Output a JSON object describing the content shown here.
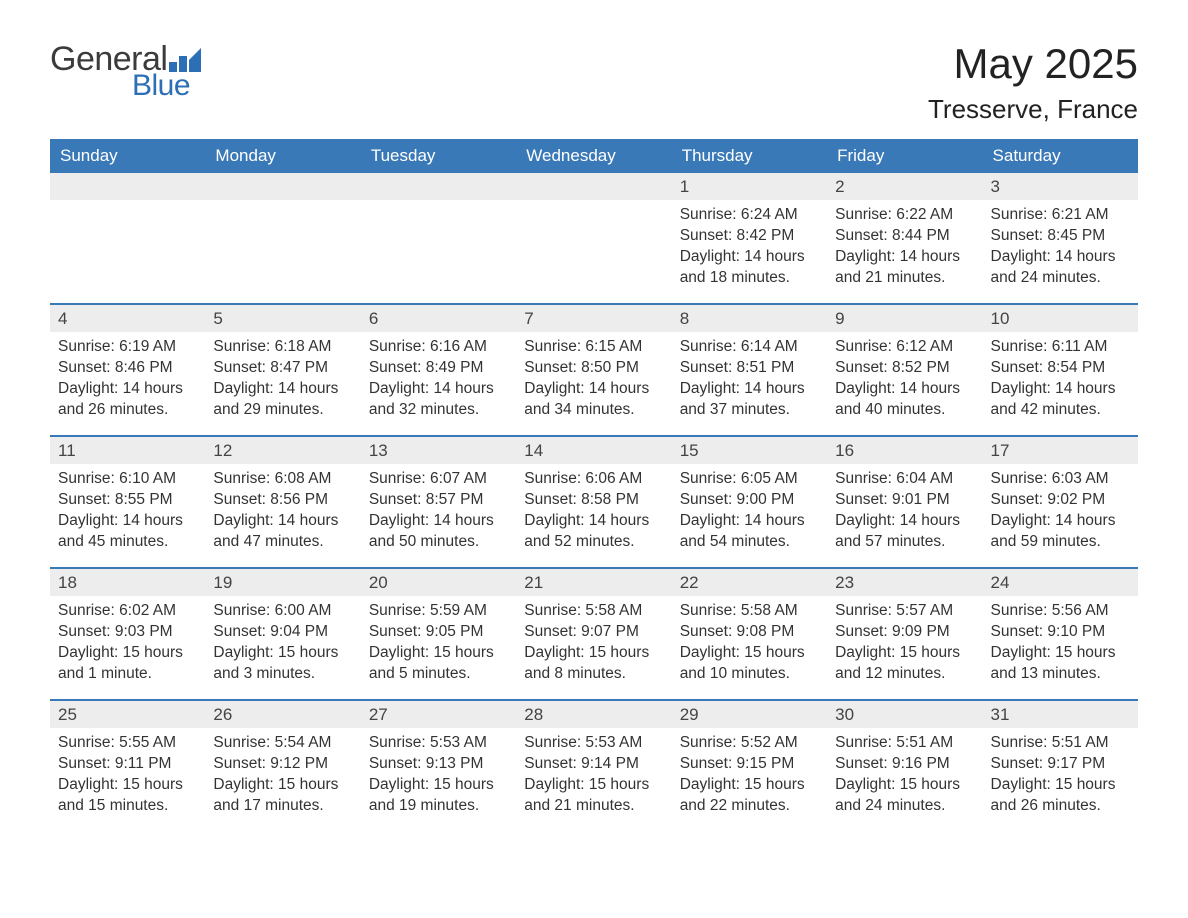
{
  "logo": {
    "text1": "General",
    "text2": "Blue",
    "icon_color": "#2c6fb5"
  },
  "title": "May 2025",
  "location": "Tresserve, France",
  "colors": {
    "header_bg": "#3a79b7",
    "header_text": "#ffffff",
    "daynum_bg": "#ededed",
    "week_border": "#3a79b7",
    "text": "#333333",
    "logo_gray": "#3b3b3b",
    "logo_blue": "#2c6fb5"
  },
  "day_names": [
    "Sunday",
    "Monday",
    "Tuesday",
    "Wednesday",
    "Thursday",
    "Friday",
    "Saturday"
  ],
  "weeks": [
    [
      null,
      null,
      null,
      null,
      {
        "n": "1",
        "sr": "6:24 AM",
        "ss": "8:42 PM",
        "dl": "14 hours and 18 minutes."
      },
      {
        "n": "2",
        "sr": "6:22 AM",
        "ss": "8:44 PM",
        "dl": "14 hours and 21 minutes."
      },
      {
        "n": "3",
        "sr": "6:21 AM",
        "ss": "8:45 PM",
        "dl": "14 hours and 24 minutes."
      }
    ],
    [
      {
        "n": "4",
        "sr": "6:19 AM",
        "ss": "8:46 PM",
        "dl": "14 hours and 26 minutes."
      },
      {
        "n": "5",
        "sr": "6:18 AM",
        "ss": "8:47 PM",
        "dl": "14 hours and 29 minutes."
      },
      {
        "n": "6",
        "sr": "6:16 AM",
        "ss": "8:49 PM",
        "dl": "14 hours and 32 minutes."
      },
      {
        "n": "7",
        "sr": "6:15 AM",
        "ss": "8:50 PM",
        "dl": "14 hours and 34 minutes."
      },
      {
        "n": "8",
        "sr": "6:14 AM",
        "ss": "8:51 PM",
        "dl": "14 hours and 37 minutes."
      },
      {
        "n": "9",
        "sr": "6:12 AM",
        "ss": "8:52 PM",
        "dl": "14 hours and 40 minutes."
      },
      {
        "n": "10",
        "sr": "6:11 AM",
        "ss": "8:54 PM",
        "dl": "14 hours and 42 minutes."
      }
    ],
    [
      {
        "n": "11",
        "sr": "6:10 AM",
        "ss": "8:55 PM",
        "dl": "14 hours and 45 minutes."
      },
      {
        "n": "12",
        "sr": "6:08 AM",
        "ss": "8:56 PM",
        "dl": "14 hours and 47 minutes."
      },
      {
        "n": "13",
        "sr": "6:07 AM",
        "ss": "8:57 PM",
        "dl": "14 hours and 50 minutes."
      },
      {
        "n": "14",
        "sr": "6:06 AM",
        "ss": "8:58 PM",
        "dl": "14 hours and 52 minutes."
      },
      {
        "n": "15",
        "sr": "6:05 AM",
        "ss": "9:00 PM",
        "dl": "14 hours and 54 minutes."
      },
      {
        "n": "16",
        "sr": "6:04 AM",
        "ss": "9:01 PM",
        "dl": "14 hours and 57 minutes."
      },
      {
        "n": "17",
        "sr": "6:03 AM",
        "ss": "9:02 PM",
        "dl": "14 hours and 59 minutes."
      }
    ],
    [
      {
        "n": "18",
        "sr": "6:02 AM",
        "ss": "9:03 PM",
        "dl": "15 hours and 1 minute."
      },
      {
        "n": "19",
        "sr": "6:00 AM",
        "ss": "9:04 PM",
        "dl": "15 hours and 3 minutes."
      },
      {
        "n": "20",
        "sr": "5:59 AM",
        "ss": "9:05 PM",
        "dl": "15 hours and 5 minutes."
      },
      {
        "n": "21",
        "sr": "5:58 AM",
        "ss": "9:07 PM",
        "dl": "15 hours and 8 minutes."
      },
      {
        "n": "22",
        "sr": "5:58 AM",
        "ss": "9:08 PM",
        "dl": "15 hours and 10 minutes."
      },
      {
        "n": "23",
        "sr": "5:57 AM",
        "ss": "9:09 PM",
        "dl": "15 hours and 12 minutes."
      },
      {
        "n": "24",
        "sr": "5:56 AM",
        "ss": "9:10 PM",
        "dl": "15 hours and 13 minutes."
      }
    ],
    [
      {
        "n": "25",
        "sr": "5:55 AM",
        "ss": "9:11 PM",
        "dl": "15 hours and 15 minutes."
      },
      {
        "n": "26",
        "sr": "5:54 AM",
        "ss": "9:12 PM",
        "dl": "15 hours and 17 minutes."
      },
      {
        "n": "27",
        "sr": "5:53 AM",
        "ss": "9:13 PM",
        "dl": "15 hours and 19 minutes."
      },
      {
        "n": "28",
        "sr": "5:53 AM",
        "ss": "9:14 PM",
        "dl": "15 hours and 21 minutes."
      },
      {
        "n": "29",
        "sr": "5:52 AM",
        "ss": "9:15 PM",
        "dl": "15 hours and 22 minutes."
      },
      {
        "n": "30",
        "sr": "5:51 AM",
        "ss": "9:16 PM",
        "dl": "15 hours and 24 minutes."
      },
      {
        "n": "31",
        "sr": "5:51 AM",
        "ss": "9:17 PM",
        "dl": "15 hours and 26 minutes."
      }
    ]
  ],
  "labels": {
    "sunrise": "Sunrise: ",
    "sunset": "Sunset: ",
    "daylight": "Daylight: "
  }
}
